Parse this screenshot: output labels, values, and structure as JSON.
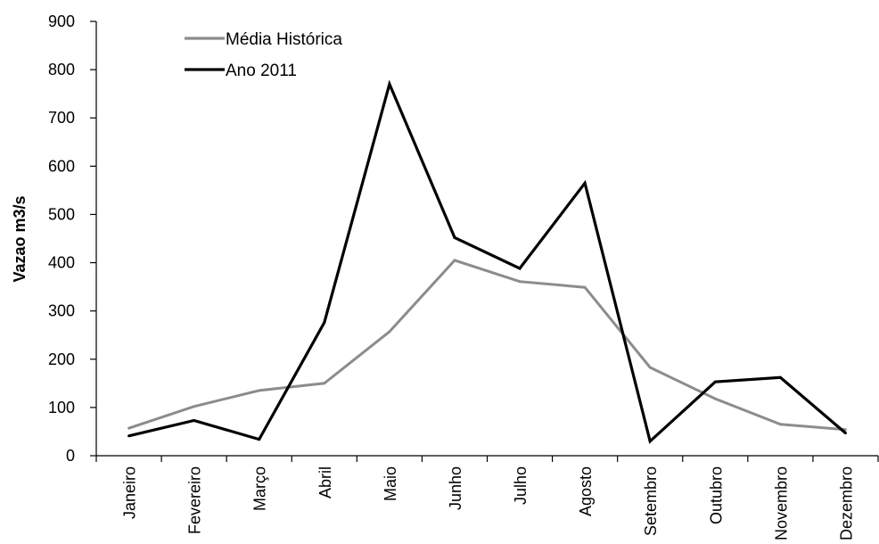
{
  "chart_data": {
    "type": "line",
    "ylabel": "Vazao m3/s",
    "xlabel": "",
    "ylim": [
      0,
      900
    ],
    "yticks": [
      0,
      100,
      200,
      300,
      400,
      500,
      600,
      700,
      800,
      900
    ],
    "categories": [
      "Janeiro",
      "Fevereiro",
      "Março",
      "Abril",
      "Maio",
      "Junho",
      "Julho",
      "Agosto",
      "Setembro",
      "Outubro",
      "Novembro",
      "Dezembro"
    ],
    "legend_position": "top-left",
    "grid": false,
    "series": [
      {
        "name": "Média Histórica",
        "color": "#8c8c8c",
        "values": [
          57,
          102,
          135,
          150,
          257,
          405,
          361,
          349,
          183,
          118,
          65,
          54
        ]
      },
      {
        "name": "Ano 2011",
        "color": "#000000",
        "values": [
          41,
          73,
          34,
          276,
          770,
          452,
          388,
          565,
          30,
          153,
          162,
          47
        ]
      }
    ]
  }
}
